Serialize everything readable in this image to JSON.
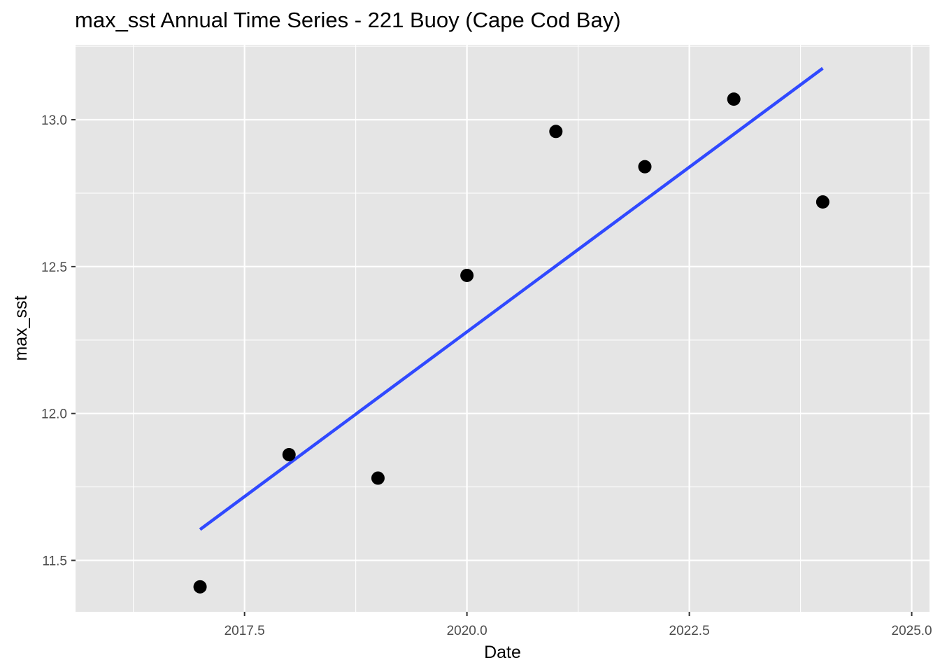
{
  "chart_data": {
    "type": "scatter",
    "title": "max_sst Annual Time Series - 221 Buoy (Cape Cod Bay)",
    "xlabel": "Date",
    "ylabel": "max_sst",
    "xlim": [
      2015.6,
      2025.2
    ],
    "ylim": [
      11.325,
      13.255
    ],
    "x_ticks": [
      2017.5,
      2020.0,
      2022.5,
      2025.0
    ],
    "x_tick_labels": [
      "2017.5",
      "2020.0",
      "2022.5",
      "2025.0"
    ],
    "y_ticks": [
      11.5,
      12.0,
      12.5,
      13.0
    ],
    "y_tick_labels": [
      "11.5",
      "12.0",
      "12.5",
      "13.0"
    ],
    "grid": true,
    "x": [
      2017,
      2018,
      2019,
      2020,
      2021,
      2022,
      2023,
      2024
    ],
    "y": [
      11.41,
      11.86,
      11.78,
      12.47,
      12.96,
      12.84,
      13.07,
      12.72
    ],
    "trend_line": {
      "type": "linear",
      "x": [
        2017,
        2024
      ],
      "y": [
        11.605,
        13.175
      ]
    },
    "colors": {
      "panel_background": "#e5e5e5",
      "grid_line": "#ffffff",
      "points": "#000000",
      "trend_line": "#3049ff"
    }
  }
}
